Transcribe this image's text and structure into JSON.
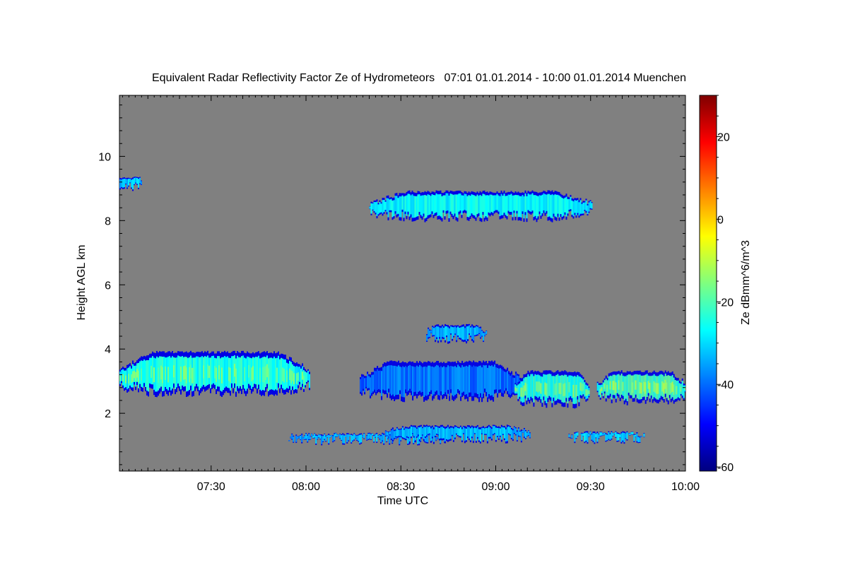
{
  "chart_data": {
    "type": "heatmap",
    "title": "Equivalent Radar Reflectivity Factor Ze of Hydrometeors   07:01 01.01.2014 - 10:00 01.01.2014 Muenchen",
    "xlabel": "Time UTC",
    "ylabel": "Height AGL km",
    "colorbar_label": "Ze dBmm^6/m^3",
    "x_ticks": [
      "07:30",
      "08:00",
      "08:30",
      "09:00",
      "09:30",
      "10:00"
    ],
    "x_tick_minutes": [
      450,
      480,
      510,
      540,
      570,
      600
    ],
    "xlim_minutes": [
      421,
      600
    ],
    "y_ticks": [
      "2",
      "4",
      "6",
      "8",
      "10"
    ],
    "y_tick_values": [
      2,
      4,
      6,
      8,
      10
    ],
    "ylim": [
      0.2,
      11.9
    ],
    "colorbar_ticks": [
      "20",
      "0",
      "-20",
      "-40",
      "-60"
    ],
    "colorbar_tick_values": [
      20,
      0,
      -20,
      -40,
      -60
    ],
    "clim": [
      -61,
      30
    ],
    "background_color": "#808080",
    "colormap": [
      "#00007f",
      "#0000ff",
      "#007fff",
      "#00ffff",
      "#7fff7f",
      "#ffff00",
      "#ff7f00",
      "#ff0000",
      "#7f0000"
    ],
    "echo_layers": [
      {
        "t0": 421.0,
        "t1": 428.0,
        "base": 9.05,
        "top": 9.35,
        "ze": -35
      },
      {
        "t0": 500.0,
        "t1": 570.5,
        "base": 8.1,
        "top": 8.9,
        "ze": -30
      },
      {
        "t0": 421.0,
        "t1": 481.0,
        "base": 2.65,
        "top": 3.9,
        "ze": -28
      },
      {
        "t0": 474.0,
        "t1": 524.0,
        "base": 1.15,
        "top": 1.35,
        "ze": -36
      },
      {
        "t0": 497.0,
        "t1": 548.0,
        "base": 2.5,
        "top": 3.6,
        "ze": -42
      },
      {
        "t0": 518.0,
        "t1": 537.0,
        "base": 4.3,
        "top": 4.75,
        "ze": -36
      },
      {
        "t0": 546.0,
        "t1": 569.5,
        "base": 2.3,
        "top": 3.3,
        "ze": -27
      },
      {
        "t0": 572.0,
        "t1": 600.0,
        "base": 2.4,
        "top": 3.3,
        "ze": -24
      },
      {
        "t0": 505.0,
        "t1": 551.0,
        "base": 1.2,
        "top": 1.6,
        "ze": -35
      },
      {
        "t0": 563.0,
        "t1": 587.0,
        "base": 1.2,
        "top": 1.4,
        "ze": -33
      }
    ]
  }
}
